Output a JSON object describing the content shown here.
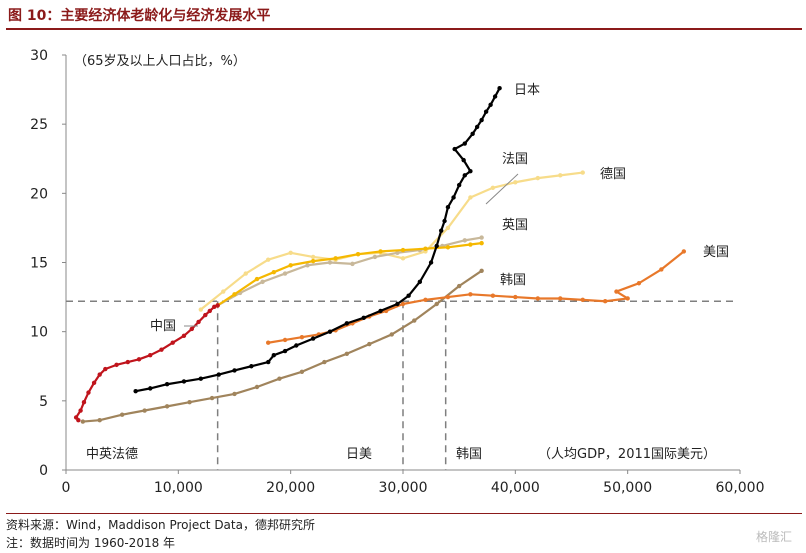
{
  "header": {
    "title": "图 10：主要经济体老龄化与经济发展水平"
  },
  "footer": {
    "source": "资料来源：Wind，Maddison Project Data，德邦研究所",
    "note": "注：数据时间为 1960-2018 年"
  },
  "watermark": "格隆汇",
  "colors": {
    "title": "#8b1a1a",
    "japan": "#000000",
    "china": "#c0141c",
    "uk": "#f5b800",
    "france": "#c8b89a",
    "germany": "#f7dc8a",
    "korea": "#a0845c",
    "usa": "#e8782a",
    "reference": "#7f7f7f"
  },
  "chart_data": {
    "type": "line",
    "ylabel": "（65岁及以上人口占比，%）",
    "xlabel": "（人均GDP，2011国际美元）",
    "xlim": [
      0,
      60000
    ],
    "ylim": [
      0,
      30
    ],
    "xticks": [
      "0",
      "10,000",
      "20,000",
      "30,000",
      "40,000",
      "50,000",
      "60,000"
    ],
    "yticks": [
      "0",
      "5",
      "10",
      "15",
      "20",
      "25",
      "30"
    ],
    "reference_lines": {
      "horizontal_y": 12.2,
      "vertical": [
        {
          "x": 13500,
          "label": "中英法德"
        },
        {
          "x": 30000,
          "label": "日美"
        },
        {
          "x": 33800,
          "label": "韩国"
        }
      ]
    },
    "series": [
      {
        "name": "日本",
        "color": "#000000",
        "x": [
          6200,
          7500,
          9000,
          10500,
          12000,
          13600,
          15000,
          16500,
          18000,
          18500,
          19500,
          20500,
          22000,
          23500,
          25000,
          26500,
          28000,
          29500,
          30500,
          31500,
          32500,
          33000,
          33400,
          33700,
          34000,
          34500,
          35000,
          35500,
          36000,
          35400,
          34600,
          35500,
          36200,
          36600,
          37000,
          37400,
          37800,
          38200,
          38600
        ],
        "y": [
          5.7,
          5.9,
          6.2,
          6.4,
          6.6,
          6.9,
          7.2,
          7.5,
          7.8,
          8.3,
          8.6,
          9.0,
          9.5,
          10.0,
          10.6,
          11.0,
          11.5,
          12.0,
          12.6,
          13.6,
          15.0,
          16.2,
          17.3,
          18.0,
          19.0,
          19.7,
          20.6,
          21.3,
          21.6,
          22.4,
          23.2,
          23.6,
          24.3,
          24.8,
          25.3,
          25.9,
          26.4,
          27.0,
          27.6
        ]
      },
      {
        "name": "中国",
        "color": "#c0141c",
        "x": [
          1100,
          900,
          1300,
          1600,
          2000,
          2500,
          3000,
          3500,
          4500,
          5500,
          6500,
          7500,
          8500,
          9500,
          10500,
          11200,
          11800,
          12400,
          12800,
          13200,
          13500
        ],
        "y": [
          3.6,
          3.8,
          4.3,
          4.9,
          5.6,
          6.3,
          6.9,
          7.3,
          7.6,
          7.8,
          8.0,
          8.3,
          8.7,
          9.2,
          9.7,
          10.2,
          10.7,
          11.2,
          11.5,
          11.8,
          11.9
        ]
      },
      {
        "name": "英国",
        "color": "#f5b800",
        "x": [
          13500,
          15000,
          17000,
          18500,
          20000,
          22000,
          24000,
          26000,
          28000,
          30000,
          32000,
          34000,
          36000,
          37000
        ],
        "y": [
          11.9,
          12.7,
          13.8,
          14.3,
          14.8,
          15.1,
          15.3,
          15.6,
          15.8,
          15.9,
          16.0,
          16.1,
          16.3,
          16.4
        ]
      },
      {
        "name": "法国",
        "color": "#c8b89a",
        "x": [
          13500,
          15500,
          17500,
          19500,
          21500,
          23500,
          25500,
          27500,
          29500,
          31500,
          33500,
          35500,
          37000
        ],
        "y": [
          11.9,
          12.8,
          13.6,
          14.2,
          14.8,
          15.0,
          14.9,
          15.4,
          15.7,
          15.9,
          16.2,
          16.6,
          16.8
        ]
      },
      {
        "name": "德国",
        "color": "#f7dc8a",
        "x": [
          12000,
          14000,
          16000,
          18000,
          20000,
          22000,
          24000,
          26000,
          28000,
          30000,
          32000,
          34000,
          36000,
          38000,
          40000,
          42000,
          44000,
          46000
        ],
        "y": [
          11.6,
          12.9,
          14.2,
          15.2,
          15.7,
          15.4,
          15.2,
          15.6,
          15.7,
          15.3,
          15.8,
          17.5,
          19.7,
          20.4,
          20.8,
          21.1,
          21.3,
          21.5
        ]
      },
      {
        "name": "韩国",
        "color": "#a0845c",
        "x": [
          1500,
          3000,
          5000,
          7000,
          9000,
          11000,
          13000,
          15000,
          17000,
          19000,
          21000,
          23000,
          25000,
          27000,
          29000,
          31000,
          33000,
          35000,
          37000
        ],
        "y": [
          3.5,
          3.6,
          4.0,
          4.3,
          4.6,
          4.9,
          5.2,
          5.5,
          6.0,
          6.6,
          7.1,
          7.8,
          8.4,
          9.1,
          9.8,
          10.8,
          12.0,
          13.3,
          14.4
        ]
      },
      {
        "name": "美国",
        "color": "#e8782a",
        "x": [
          18000,
          19500,
          21000,
          22500,
          24000,
          25500,
          27000,
          28500,
          30000,
          32000,
          34000,
          36000,
          38000,
          40000,
          42000,
          44000,
          46000,
          48000,
          50000,
          49000,
          51000,
          53000,
          55000
        ],
        "y": [
          9.2,
          9.4,
          9.6,
          9.8,
          10.1,
          10.6,
          11.1,
          11.5,
          12.0,
          12.3,
          12.5,
          12.7,
          12.6,
          12.5,
          12.4,
          12.4,
          12.3,
          12.2,
          12.4,
          12.9,
          13.5,
          14.5,
          15.8
        ]
      }
    ],
    "labels": {
      "japan": "日本",
      "france": "法国",
      "germany": "德国",
      "uk": "英国",
      "usa": "美国",
      "korea": "韩国",
      "china": "中国"
    },
    "grid": false,
    "legend": "inline labels"
  }
}
